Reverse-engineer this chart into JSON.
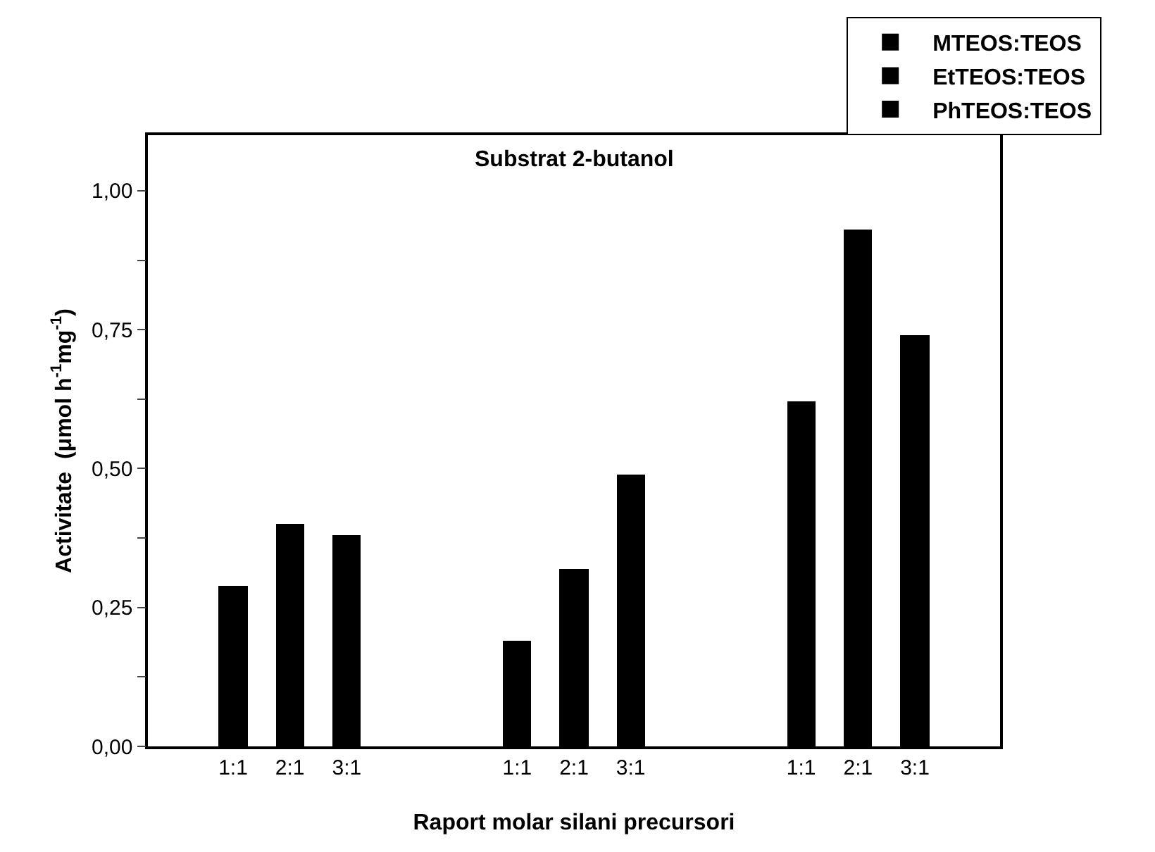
{
  "chart_data": {
    "type": "bar",
    "title": "Substrat 2-butanol",
    "xlabel": "Raport molar silani precursori",
    "ylabel": "Activitate  (μmol h$^{-1}$mg$^{-1}$)",
    "categories": [
      null,
      "1:1",
      "2:1",
      "3:1",
      null,
      null,
      "1:1",
      "2:1",
      "3:1",
      null,
      null,
      "1:1",
      "2:1",
      "3:1",
      null
    ],
    "series": [
      {
        "name": "MTEOS:TEOS",
        "color": "#000000",
        "values": [
          null,
          0.29,
          0.4,
          0.38,
          null,
          null,
          null,
          null,
          null,
          null,
          null,
          null,
          null,
          null,
          null
        ]
      },
      {
        "name": "EtTEOS:TEOS",
        "color": "#000000",
        "values": [
          null,
          null,
          null,
          null,
          null,
          null,
          0.19,
          0.32,
          0.49,
          null,
          null,
          null,
          null,
          null,
          null
        ]
      },
      {
        "name": "PhTEOS:TEOS",
        "color": "#000000",
        "values": [
          null,
          null,
          null,
          null,
          null,
          null,
          null,
          null,
          null,
          null,
          null,
          0.62,
          0.93,
          0.74,
          null
        ]
      }
    ],
    "ylim": [
      0,
      1.1
    ],
    "yticks": [
      {
        "value": 0,
        "label": "0,00"
      },
      {
        "value": 0.125,
        "label": null
      },
      {
        "value": 0.25,
        "label": "0,25"
      },
      {
        "value": 0.375,
        "label": null
      },
      {
        "value": 0.5,
        "label": "0,50"
      },
      {
        "value": 0.625,
        "label": null
      },
      {
        "value": 0.75,
        "label": "0,75"
      },
      {
        "value": 0.875,
        "label": null
      },
      {
        "value": 1.0,
        "label": "1,00"
      }
    ],
    "legend": "top right"
  }
}
